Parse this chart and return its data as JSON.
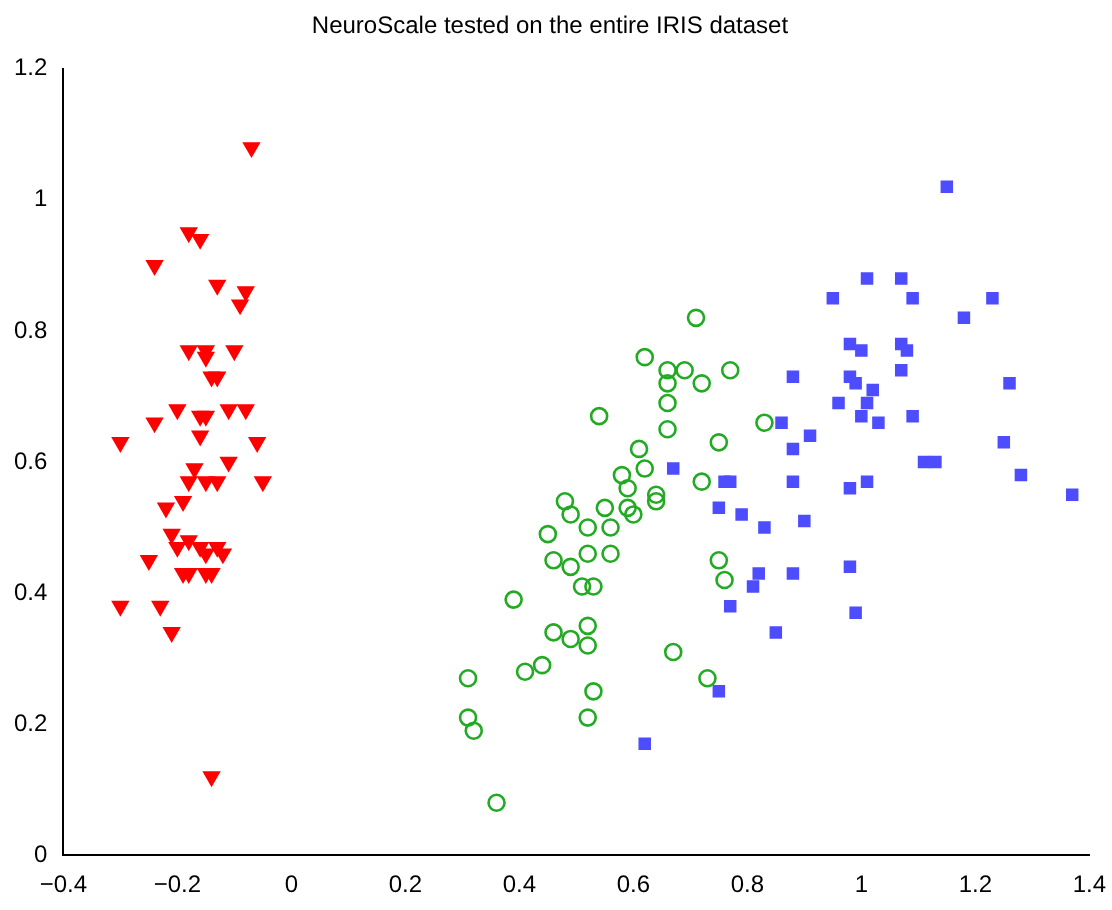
{
  "chart_data": {
    "type": "scatter",
    "title": "NeuroScale tested on the entire IRIS dataset",
    "xlim": [
      -0.4,
      1.4
    ],
    "ylim": [
      0,
      1.2
    ],
    "xticks": [
      -0.4,
      -0.2,
      0,
      0.2,
      0.4,
      0.6,
      0.8,
      1,
      1.2,
      1.4
    ],
    "yticks": [
      0,
      0.2,
      0.4,
      0.6,
      0.8,
      1,
      1.2
    ],
    "grid": false,
    "legend": false,
    "series": [
      {
        "color": "#ff0000",
        "marker": "triangle",
        "x": [
          -0.07,
          -0.18,
          -0.16,
          -0.24,
          -0.13,
          -0.08,
          -0.09,
          -0.18,
          -0.15,
          -0.15,
          -0.1,
          -0.14,
          -0.13,
          -0.2,
          -0.24,
          -0.16,
          -0.15,
          -0.11,
          -0.08,
          -0.3,
          -0.16,
          -0.06,
          -0.17,
          -0.11,
          -0.05,
          -0.18,
          -0.15,
          -0.13,
          -0.22,
          -0.19,
          -0.21,
          -0.2,
          -0.18,
          -0.16,
          -0.15,
          -0.13,
          -0.12,
          -0.25,
          -0.19,
          -0.18,
          -0.15,
          -0.14,
          -0.3,
          -0.23,
          -0.21,
          -0.14
        ],
        "values": [
          1.08,
          0.95,
          0.94,
          0.9,
          0.87,
          0.86,
          0.84,
          0.77,
          0.77,
          0.76,
          0.77,
          0.73,
          0.73,
          0.68,
          0.66,
          0.67,
          0.67,
          0.68,
          0.68,
          0.63,
          0.64,
          0.63,
          0.59,
          0.6,
          0.57,
          0.57,
          0.57,
          0.57,
          0.53,
          0.54,
          0.49,
          0.47,
          0.48,
          0.47,
          0.46,
          0.47,
          0.46,
          0.45,
          0.43,
          0.43,
          0.43,
          0.43,
          0.38,
          0.38,
          0.34,
          0.12
        ]
      },
      {
        "color": "#22aa22",
        "marker": "circle",
        "x": [
          0.71,
          0.62,
          0.66,
          0.69,
          0.77,
          0.66,
          0.72,
          0.54,
          0.66,
          0.66,
          0.83,
          0.61,
          0.75,
          0.58,
          0.62,
          0.59,
          0.72,
          0.64,
          0.64,
          0.48,
          0.49,
          0.55,
          0.59,
          0.6,
          0.52,
          0.56,
          0.45,
          0.52,
          0.56,
          0.46,
          0.49,
          0.75,
          0.76,
          0.51,
          0.53,
          0.39,
          0.52,
          0.46,
          0.49,
          0.52,
          0.67,
          0.31,
          0.41,
          0.44,
          0.53,
          0.73,
          0.31,
          0.32,
          0.52,
          0.36
        ],
        "values": [
          0.82,
          0.76,
          0.74,
          0.74,
          0.74,
          0.72,
          0.72,
          0.67,
          0.69,
          0.65,
          0.66,
          0.62,
          0.63,
          0.58,
          0.59,
          0.56,
          0.57,
          0.55,
          0.54,
          0.54,
          0.52,
          0.53,
          0.53,
          0.52,
          0.5,
          0.5,
          0.49,
          0.46,
          0.46,
          0.45,
          0.44,
          0.45,
          0.42,
          0.41,
          0.41,
          0.39,
          0.35,
          0.34,
          0.33,
          0.32,
          0.31,
          0.27,
          0.28,
          0.29,
          0.25,
          0.27,
          0.21,
          0.19,
          0.21,
          0.08
        ]
      },
      {
        "color": "#4d4dff",
        "marker": "square",
        "x": [
          0.67,
          0.62,
          0.75,
          0.75,
          0.79,
          0.83,
          0.76,
          0.77,
          0.82,
          0.81,
          0.77,
          0.85,
          0.86,
          0.88,
          0.88,
          0.88,
          0.88,
          0.9,
          0.91,
          1.15,
          1.01,
          1.07,
          0.95,
          1.09,
          1.23,
          1.18,
          0.98,
          1,
          1.07,
          1.08,
          0.98,
          0.99,
          1.07,
          1.26,
          1.02,
          0.96,
          1.01,
          1,
          1.03,
          1.09,
          1.25,
          1.11,
          1.13,
          0.98,
          1.01,
          1.28,
          1.37,
          0.98,
          0.99
        ],
        "values": [
          0.59,
          0.17,
          0.25,
          0.53,
          0.52,
          0.5,
          0.57,
          0.57,
          0.43,
          0.41,
          0.38,
          0.34,
          0.66,
          0.73,
          0.62,
          0.57,
          0.43,
          0.51,
          0.64,
          1.02,
          0.88,
          0.88,
          0.85,
          0.85,
          0.85,
          0.82,
          0.78,
          0.77,
          0.78,
          0.77,
          0.73,
          0.72,
          0.74,
          0.72,
          0.71,
          0.69,
          0.69,
          0.67,
          0.66,
          0.67,
          0.63,
          0.6,
          0.6,
          0.56,
          0.57,
          0.58,
          0.55,
          0.44,
          0.37
        ]
      }
    ]
  }
}
